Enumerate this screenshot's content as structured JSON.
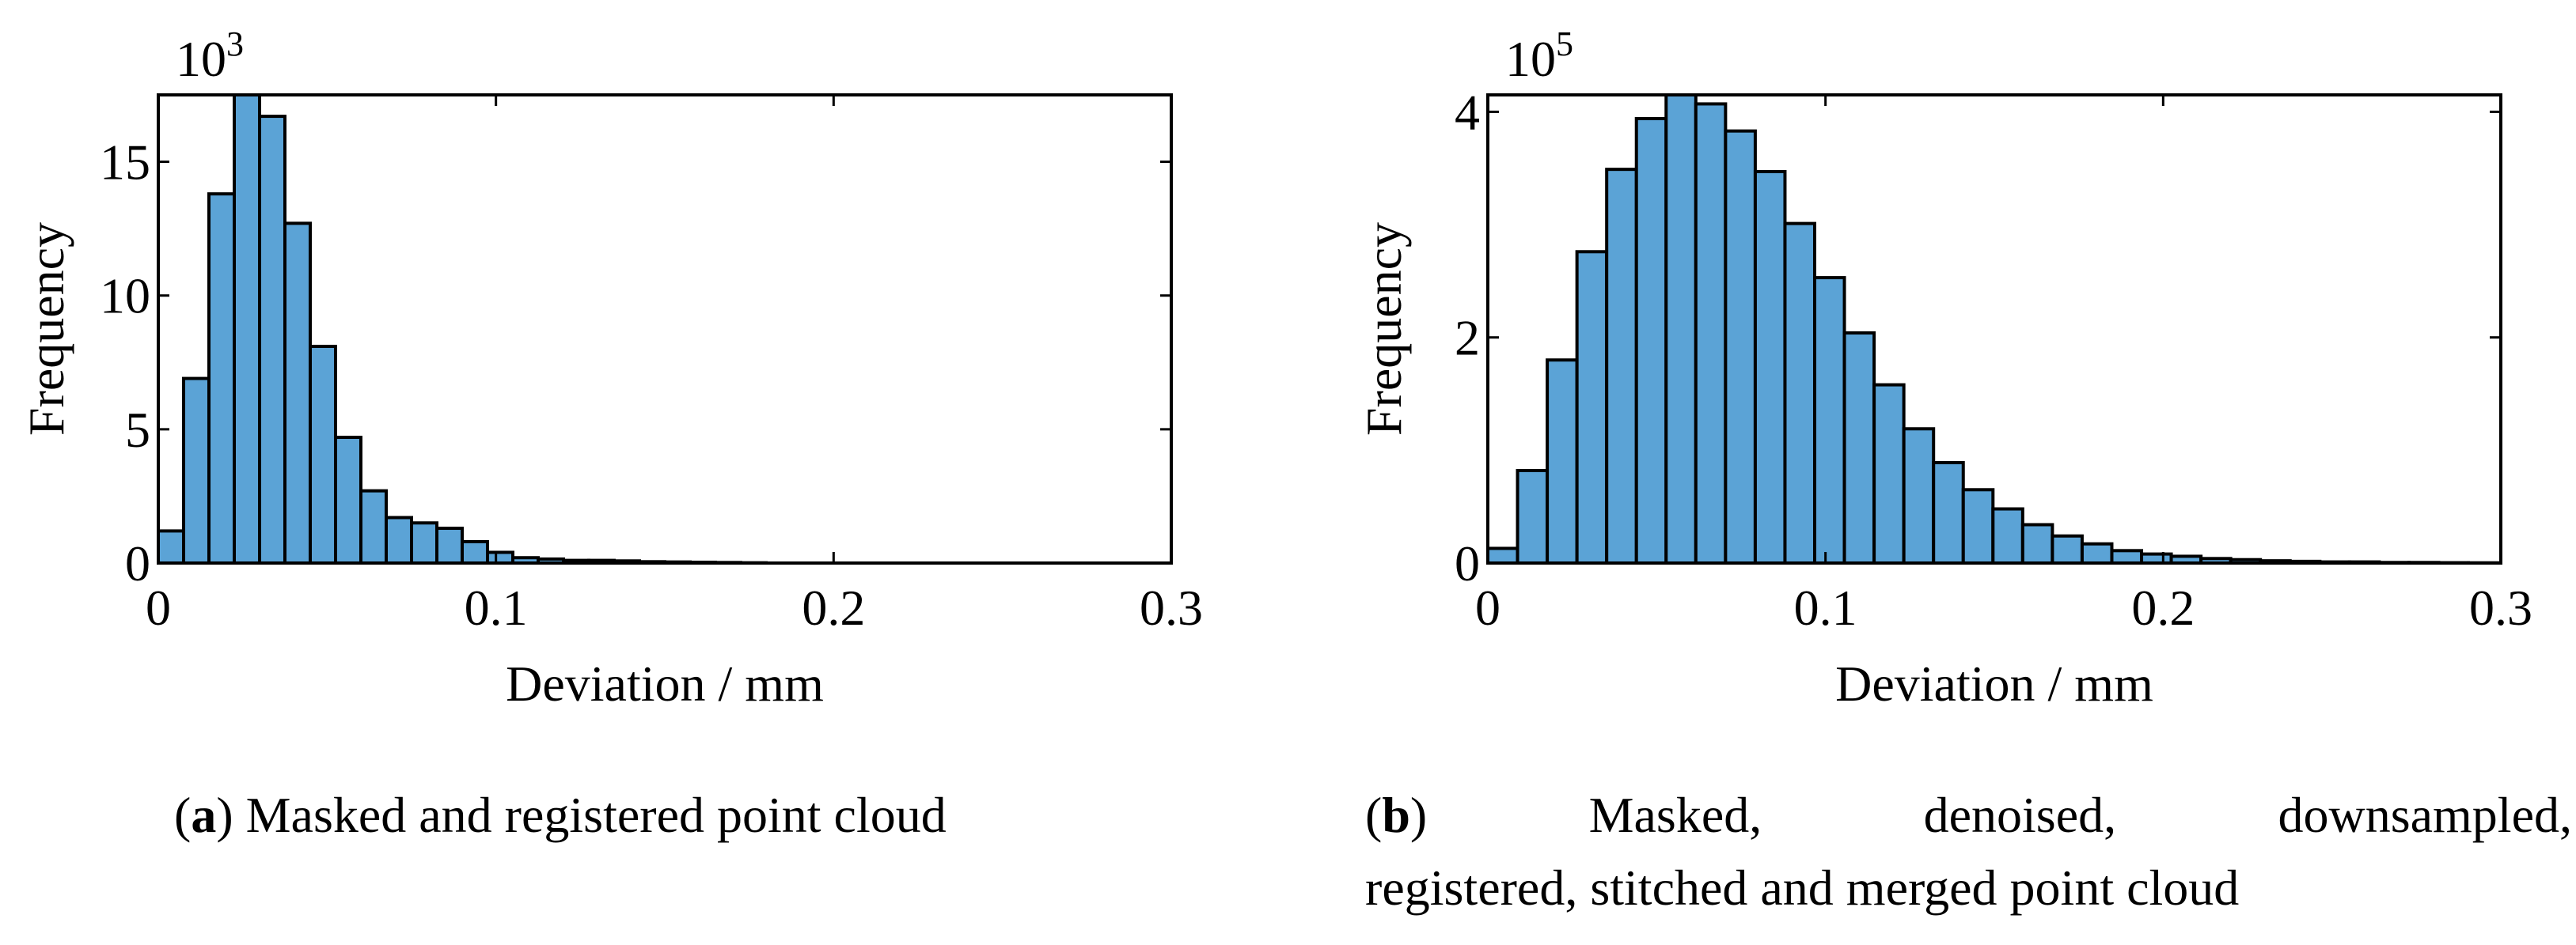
{
  "colors": {
    "bar_fill": "#5ba3d6",
    "bar_edge": "#000000",
    "axis": "#000000"
  },
  "chart_data": [
    {
      "type": "bar",
      "xlabel": "Deviation / mm",
      "ylabel": "Frequency",
      "exponent_base": "10",
      "exponent_power": "3",
      "xlim": [
        0,
        0.3
      ],
      "ylim": [
        0,
        17.5
      ],
      "xticks": [
        0,
        0.1,
        0.2,
        0.3
      ],
      "xtick_labels": [
        "0",
        "0.1",
        "0.2",
        "0.3"
      ],
      "yticks": [
        0,
        5,
        10,
        15
      ],
      "ytick_labels": [
        "0",
        "5",
        "10",
        "15"
      ],
      "bin_width": 0.0075,
      "bin_start": 0,
      "values": [
        1.2,
        6.9,
        13.8,
        17.5,
        16.7,
        12.7,
        8.1,
        4.7,
        2.7,
        1.7,
        1.5,
        1.3,
        0.8,
        0.4,
        0.2,
        0.15,
        0.1,
        0.1,
        0.08,
        0.05,
        0.04,
        0.03,
        0.02,
        0.01
      ],
      "caption_label": "a",
      "caption_text": "Masked and registered point cloud"
    },
    {
      "type": "bar",
      "xlabel": "Deviation / mm",
      "ylabel": "Frequency",
      "exponent_base": "10",
      "exponent_power": "5",
      "xlim": [
        0,
        0.3
      ],
      "ylim": [
        0,
        4.15
      ],
      "xticks": [
        0,
        0.1,
        0.2,
        0.3
      ],
      "xtick_labels": [
        "0",
        "0.1",
        "0.2",
        "0.3"
      ],
      "yticks": [
        0,
        2,
        4
      ],
      "ytick_labels": [
        "0",
        "2",
        "4"
      ],
      "bin_width": 0.0088,
      "bin_start": 0,
      "values": [
        0.13,
        0.82,
        1.8,
        2.76,
        3.49,
        3.94,
        4.15,
        4.07,
        3.83,
        3.47,
        3.01,
        2.53,
        2.04,
        1.58,
        1.19,
        0.89,
        0.65,
        0.48,
        0.34,
        0.24,
        0.17,
        0.11,
        0.08,
        0.06,
        0.04,
        0.03,
        0.02,
        0.015,
        0.01,
        0.01,
        0.005,
        0.005,
        0.003,
        0.002
      ],
      "caption_label": "b",
      "caption_text_line1": [
        "Masked,",
        "denoised,",
        "downsampled,"
      ],
      "caption_text_line2": "registered, stitched and merged point cloud"
    }
  ]
}
